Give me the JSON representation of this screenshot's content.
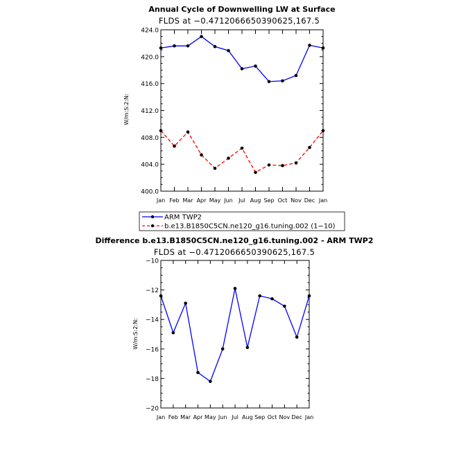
{
  "chart_data": [
    {
      "type": "line",
      "title": "Annual Cycle of Downwelling LW at Surface",
      "subtitle": "FLDS at −0.4712066650390625,167.5",
      "xlabel": "",
      "ylabel": "W/m:S:2:N:",
      "categories": [
        "Jan",
        "Feb",
        "Mar",
        "Apr",
        "May",
        "Jun",
        "Jul",
        "Aug",
        "Sep",
        "Oct",
        "Nov",
        "Dec",
        "Jan"
      ],
      "ylim": [
        400,
        424
      ],
      "yticks": [
        "400.0",
        "404.0",
        "408.0",
        "412.0",
        "416.0",
        "420.0",
        "424.0"
      ],
      "series": [
        {
          "name": "ARM TWP2",
          "color": "#0000ff",
          "style": "solid",
          "values": [
            421.3,
            421.6,
            421.6,
            423.0,
            421.5,
            420.9,
            418.2,
            418.6,
            416.3,
            416.4,
            417.2,
            421.7,
            421.3
          ]
        },
        {
          "name": "b.e13.B1850C5CN.ne120_g16.tuning.002 (1−10)",
          "color": "#ff0000",
          "style": "dashed",
          "values": [
            409.0,
            406.7,
            408.8,
            405.4,
            403.4,
            404.9,
            406.4,
            402.8,
            403.9,
            403.8,
            404.2,
            406.5,
            409.0
          ]
        }
      ]
    },
    {
      "type": "line",
      "title": "Difference b.e13.B1850C5CN.ne120_g16.tuning.002 - ARM TWP2",
      "subtitle": "FLDS at −0.4712066650390625,167.5",
      "xlabel": "",
      "ylabel": "W/m:S:2:N:",
      "categories": [
        "Jan",
        "Feb",
        "Mar",
        "Apr",
        "May",
        "Jun",
        "Jul",
        "Aug",
        "Sep",
        "Oct",
        "Nov",
        "Dec",
        "Jan"
      ],
      "ylim": [
        -20,
        -10
      ],
      "yticks": [
        "−20",
        "−18",
        "−16",
        "−14",
        "−12",
        "−10"
      ],
      "series": [
        {
          "name": "Difference",
          "color": "#0000ff",
          "style": "solid",
          "values": [
            -12.4,
            -14.9,
            -12.9,
            -17.6,
            -18.2,
            -16.0,
            -11.9,
            -15.9,
            -12.4,
            -12.6,
            -13.1,
            -15.2,
            -12.4
          ]
        }
      ]
    }
  ]
}
